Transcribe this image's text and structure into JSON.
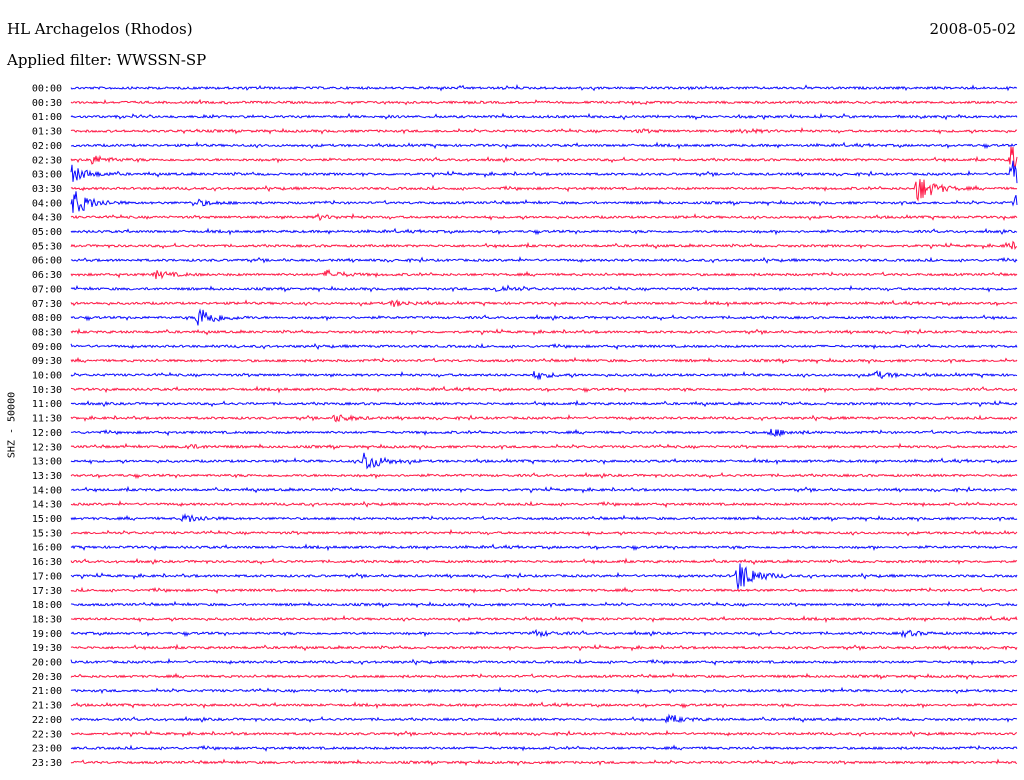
{
  "header": {
    "station": "HL Archagelos (Rhodos)",
    "date": "2008-05-02",
    "filter": "Applied filter: WWSSN-SP"
  },
  "channel_label": "SHZ - 50000",
  "colors": {
    "odd_trace": "#0a0aff",
    "even_trace": "#ff1744",
    "text": "#000000",
    "background": "#ffffff"
  },
  "chart_data": {
    "type": "line",
    "title": "HL Archagelos (Rhodos)",
    "subtitle": "Applied filter: WWSSN-SP",
    "date": "2008-05-02",
    "ylabel": "SHZ - 50000",
    "row_labels": [
      "00:00",
      "00:30",
      "01:00",
      "01:30",
      "02:00",
      "02:30",
      "03:00",
      "03:30",
      "04:00",
      "04:30",
      "05:00",
      "05:30",
      "06:00",
      "06:30",
      "07:00",
      "07:30",
      "08:00",
      "08:30",
      "09:00",
      "09:30",
      "10:00",
      "10:30",
      "11:00",
      "11:30",
      "12:00",
      "12:30",
      "13:00",
      "13:30",
      "14:00",
      "14:30",
      "15:00",
      "15:30",
      "16:00",
      "16:30",
      "17:00",
      "17:30",
      "18:00",
      "18:30",
      "19:00",
      "19:30",
      "20:00",
      "20:30",
      "21:00",
      "21:30",
      "22:00",
      "22:30",
      "23:00",
      "23:30"
    ],
    "row_colors": [
      "blue",
      "red"
    ],
    "events": [
      {
        "row": "01:30",
        "pos": 0.71,
        "amp": 0.35
      },
      {
        "row": "01:30",
        "pos": 0.6,
        "amp": 0.2
      },
      {
        "row": "02:30",
        "pos": 0.02,
        "amp": 0.8
      },
      {
        "row": "02:30",
        "pos": 0.995,
        "amp": 3.2
      },
      {
        "row": "03:00",
        "pos": 0.0,
        "amp": 1.5
      },
      {
        "row": "03:00",
        "pos": 0.995,
        "amp": 2.2
      },
      {
        "row": "03:30",
        "pos": 0.895,
        "amp": 2.4
      },
      {
        "row": "04:00",
        "pos": 0.003,
        "amp": 2.2
      },
      {
        "row": "04:00",
        "pos": 0.13,
        "amp": 0.6
      },
      {
        "row": "04:00",
        "pos": 0.999,
        "amp": 1.4
      },
      {
        "row": "04:30",
        "pos": 0.26,
        "amp": 0.4
      },
      {
        "row": "05:30",
        "pos": 0.99,
        "amp": 0.6
      },
      {
        "row": "06:30",
        "pos": 0.09,
        "amp": 0.6
      },
      {
        "row": "06:30",
        "pos": 0.27,
        "amp": 0.7
      },
      {
        "row": "07:00",
        "pos": 0.45,
        "amp": 0.5
      },
      {
        "row": "07:30",
        "pos": 0.34,
        "amp": 0.5
      },
      {
        "row": "08:00",
        "pos": 0.135,
        "amp": 2.0
      },
      {
        "row": "10:00",
        "pos": 0.49,
        "amp": 0.6
      },
      {
        "row": "10:00",
        "pos": 0.85,
        "amp": 0.6
      },
      {
        "row": "11:30",
        "pos": 0.28,
        "amp": 0.6
      },
      {
        "row": "12:00",
        "pos": 0.74,
        "amp": 0.7
      },
      {
        "row": "12:30",
        "pos": 0.12,
        "amp": 0.4
      },
      {
        "row": "13:00",
        "pos": 0.31,
        "amp": 1.8
      },
      {
        "row": "15:00",
        "pos": 0.12,
        "amp": 0.7
      },
      {
        "row": "17:00",
        "pos": 0.705,
        "amp": 2.8
      },
      {
        "row": "19:00",
        "pos": 0.49,
        "amp": 0.5
      },
      {
        "row": "19:00",
        "pos": 0.88,
        "amp": 0.5
      },
      {
        "row": "22:00",
        "pos": 0.63,
        "amp": 0.6
      }
    ]
  }
}
